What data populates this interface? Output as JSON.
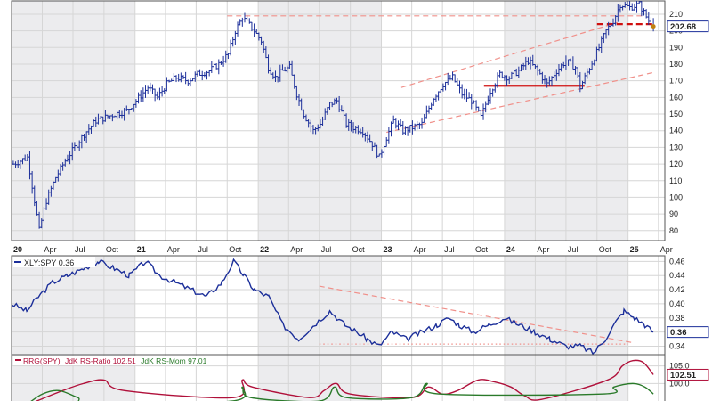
{
  "chart_data": [
    {
      "type": "line",
      "style": "ohlc-bars",
      "series": [
        {
          "name": "",
          "color": "#1c2f9a",
          "points": [
            [
              "2020-01-06",
              120
            ],
            [
              "2020-02-17",
              124
            ],
            [
              "2020-02-24",
              116
            ],
            [
              "2020-03-09",
              98
            ],
            [
              "2020-03-23",
              80
            ],
            [
              "2020-04-13",
              98
            ],
            [
              "2020-05-11",
              112
            ],
            [
              "2020-06-08",
              122
            ],
            [
              "2020-07-06",
              130
            ],
            [
              "2020-08-03",
              138
            ],
            [
              "2020-09-07",
              146
            ],
            [
              "2020-10-05",
              148
            ],
            [
              "2020-11-02",
              150
            ],
            [
              "2020-12-07",
              152
            ],
            [
              "2021-01-04",
              158
            ],
            [
              "2021-02-08",
              166
            ],
            [
              "2021-03-08",
              160
            ],
            [
              "2021-04-05",
              168
            ],
            [
              "2021-05-03",
              172
            ],
            [
              "2021-06-07",
              170
            ],
            [
              "2021-07-05",
              174
            ],
            [
              "2021-08-09",
              176
            ],
            [
              "2021-09-06",
              180
            ],
            [
              "2021-10-04",
              186
            ],
            [
              "2021-10-25",
              200
            ],
            [
              "2021-11-15",
              208
            ],
            [
              "2021-12-13",
              202
            ],
            [
              "2022-01-10",
              194
            ],
            [
              "2022-01-31",
              178
            ],
            [
              "2022-02-21",
              172
            ],
            [
              "2022-03-14",
              176
            ],
            [
              "2022-04-04",
              178
            ],
            [
              "2022-04-25",
              162
            ],
            [
              "2022-05-16",
              150
            ],
            [
              "2022-06-13",
              140
            ],
            [
              "2022-07-04",
              144
            ],
            [
              "2022-08-01",
              156
            ],
            [
              "2022-08-22",
              158
            ],
            [
              "2022-09-19",
              144
            ],
            [
              "2022-10-10",
              142
            ],
            [
              "2022-11-07",
              140
            ],
            [
              "2022-12-05",
              132
            ],
            [
              "2022-12-26",
              124
            ],
            [
              "2023-01-16",
              136
            ],
            [
              "2023-02-06",
              146
            ],
            [
              "2023-03-06",
              140
            ],
            [
              "2023-04-03",
              142
            ],
            [
              "2023-05-01",
              144
            ],
            [
              "2023-06-05",
              160
            ],
            [
              "2023-07-03",
              168
            ],
            [
              "2023-07-31",
              172
            ],
            [
              "2023-08-28",
              162
            ],
            [
              "2023-09-25",
              158
            ],
            [
              "2023-10-23",
              148
            ],
            [
              "2023-11-20",
              164
            ],
            [
              "2023-12-18",
              174
            ],
            [
              "2024-01-15",
              172
            ],
            [
              "2024-02-12",
              176
            ],
            [
              "2024-03-11",
              182
            ],
            [
              "2024-04-08",
              176
            ],
            [
              "2024-05-06",
              168
            ],
            [
              "2024-06-03",
              176
            ],
            [
              "2024-07-01",
              182
            ],
            [
              "2024-07-29",
              178
            ],
            [
              "2024-08-12",
              166
            ],
            [
              "2024-09-09",
              178
            ],
            [
              "2024-10-07",
              190
            ],
            [
              "2024-10-28",
              200
            ],
            [
              "2024-11-18",
              206
            ],
            [
              "2024-12-09",
              216
            ],
            [
              "2025-01-06",
              214
            ],
            [
              "2025-02-03",
              216
            ],
            [
              "2025-03-03",
              206
            ],
            [
              "2025-03-17",
              202.68
            ]
          ]
        }
      ],
      "y_ticks": [
        80,
        90,
        100,
        110,
        120,
        130,
        140,
        150,
        160,
        170,
        180,
        190,
        200,
        210
      ],
      "ylim": [
        74,
        218
      ],
      "xlim": [
        "2020-01-01",
        "2025-04-20"
      ],
      "x_ticks": [
        {
          "date": "2020-01-01",
          "label": "20",
          "bold": true
        },
        {
          "date": "2020-04-01",
          "label": "Apr",
          "bold": false
        },
        {
          "date": "2020-07-01",
          "label": "Jul",
          "bold": false
        },
        {
          "date": "2020-10-01",
          "label": "Oct",
          "bold": false
        },
        {
          "date": "2021-01-01",
          "label": "21",
          "bold": true
        },
        {
          "date": "2021-04-01",
          "label": "Apr",
          "bold": false
        },
        {
          "date": "2021-07-01",
          "label": "Jul",
          "bold": false
        },
        {
          "date": "2021-10-01",
          "label": "Oct",
          "bold": false
        },
        {
          "date": "2022-01-01",
          "label": "22",
          "bold": true
        },
        {
          "date": "2022-04-01",
          "label": "Apr",
          "bold": false
        },
        {
          "date": "2022-07-01",
          "label": "Jul",
          "bold": false
        },
        {
          "date": "2022-10-01",
          "label": "Oct",
          "bold": false
        },
        {
          "date": "2023-01-01",
          "label": "23",
          "bold": true
        },
        {
          "date": "2023-04-01",
          "label": "Apr",
          "bold": false
        },
        {
          "date": "2023-07-01",
          "label": "Jul",
          "bold": false
        },
        {
          "date": "2023-10-01",
          "label": "Oct",
          "bold": false
        },
        {
          "date": "2024-01-01",
          "label": "24",
          "bold": true
        },
        {
          "date": "2024-04-01",
          "label": "Apr",
          "bold": false
        },
        {
          "date": "2024-07-01",
          "label": "Jul",
          "bold": false
        },
        {
          "date": "2024-10-01",
          "label": "Oct",
          "bold": false
        },
        {
          "date": "2025-01-01",
          "label": "25",
          "bold": true
        },
        {
          "date": "2025-04-01",
          "label": "Apr",
          "bold": false
        }
      ],
      "last_value_label": "202.68",
      "grid": true,
      "annotations": [
        {
          "kind": "dashed-line",
          "color": "#f0908a",
          "from": [
            "2021-10-01",
            209
          ],
          "to": [
            "2025-02-20",
            209
          ]
        },
        {
          "kind": "dashed-line",
          "color": "#f0908a",
          "from": [
            "2023-01-16",
            139
          ],
          "to": [
            "2025-03-17",
            175
          ]
        },
        {
          "kind": "dashed-line",
          "color": "#f0908a",
          "from": [
            "2023-03-01",
            166
          ],
          "to": [
            "2024-12-01",
            205
          ]
        },
        {
          "kind": "solid-line",
          "color": "#d01010",
          "from": [
            "2023-11-01",
            167
          ],
          "to": [
            "2024-08-25",
            167
          ]
        },
        {
          "kind": "dashed-heavy",
          "color": "#d01010",
          "from": [
            "2024-10-01",
            204
          ],
          "to": [
            "2025-03-17",
            204
          ]
        }
      ]
    },
    {
      "type": "line",
      "series": [
        {
          "name": "XLY:SPY",
          "color": "#1c2f9a",
          "x": [
            "2020-01-01",
            "2020-02-15",
            "2020-03-20",
            "2020-05-01",
            "2020-06-15",
            "2020-08-01",
            "2020-09-15",
            "2020-11-01",
            "2020-12-15",
            "2021-02-01",
            "2021-03-15",
            "2021-05-01",
            "2021-06-15",
            "2021-08-01",
            "2021-09-15",
            "2021-10-20",
            "2021-11-20",
            "2021-12-20",
            "2022-02-01",
            "2022-03-15",
            "2022-05-01",
            "2022-06-15",
            "2022-08-01",
            "2022-09-15",
            "2022-10-20",
            "2022-11-20",
            "2022-12-25",
            "2023-02-01",
            "2023-03-15",
            "2023-05-01",
            "2023-06-15",
            "2023-07-20",
            "2023-08-20",
            "2023-10-01",
            "2023-11-15",
            "2024-01-01",
            "2024-02-15",
            "2024-04-01",
            "2024-05-15",
            "2024-07-01",
            "2024-08-15",
            "2024-09-20",
            "2024-10-25",
            "2024-11-20",
            "2024-12-20",
            "2025-01-20",
            "2025-02-20",
            "2025-03-17"
          ],
          "values": [
            0.4,
            0.39,
            0.41,
            0.43,
            0.44,
            0.45,
            0.46,
            0.45,
            0.44,
            0.46,
            0.44,
            0.43,
            0.42,
            0.41,
            0.43,
            0.46,
            0.44,
            0.42,
            0.41,
            0.37,
            0.35,
            0.37,
            0.39,
            0.37,
            0.36,
            0.35,
            0.34,
            0.36,
            0.35,
            0.36,
            0.37,
            0.38,
            0.37,
            0.36,
            0.37,
            0.38,
            0.37,
            0.36,
            0.35,
            0.34,
            0.34,
            0.33,
            0.35,
            0.37,
            0.39,
            0.38,
            0.37,
            0.36
          ]
        }
      ],
      "y_ticks": [
        0.34,
        0.36,
        0.38,
        0.4,
        0.42,
        0.44,
        0.46
      ],
      "y_tick_labels": [
        "0.34",
        "0.36",
        "0.38",
        "0.40",
        "0.42",
        "0.44",
        "0.46"
      ],
      "ylim": [
        0.328,
        0.468
      ],
      "last_value_label": "0.36",
      "legend": "XLY:SPY 0.36",
      "annotations": [
        {
          "kind": "dashed-line",
          "color": "#f0908a",
          "from": [
            "2022-07-01",
            0.425
          ],
          "to": [
            "2025-01-15",
            0.345
          ]
        },
        {
          "kind": "dotted-line",
          "color": "#f0908a",
          "from": [
            "2022-07-01",
            0.343
          ],
          "to": [
            "2025-01-01",
            0.343
          ]
        }
      ]
    },
    {
      "type": "line",
      "legend_items": [
        "RRG(SPY)",
        "JdK RS-Ratio 102.51",
        "JdK RS-Mom 97.01"
      ],
      "y_ticks": [
        105,
        100
      ],
      "y_tick_labels": [
        "105.0",
        "100.0"
      ],
      "ylim": [
        93,
        108.2
      ],
      "last_value_label": "102.51",
      "series": [
        {
          "name": "JdK RS-Ratio",
          "color": "#b0103a",
          "x": [
            "2020-03-15",
            "2020-06-01",
            "2020-08-01",
            "2020-10-01",
            "2020-12-01",
            "2021-10-20",
            "2021-11-15",
            "2021-12-15",
            "2022-06-01",
            "2022-07-15",
            "2022-08-20",
            "2022-10-01",
            "2023-04-01",
            "2023-05-20",
            "2023-07-01",
            "2023-08-15",
            "2023-10-15",
            "2023-12-01",
            "2024-01-20",
            "2024-03-01",
            "2024-04-20",
            "2024-11-01",
            "2024-12-15",
            "2025-01-15",
            "2025-02-15",
            "2025-03-17"
          ],
          "values": [
            95,
            98,
            100,
            101,
            98,
            96,
            101,
            99,
            96,
            98,
            100,
            97,
            96,
            99,
            97,
            98,
            101,
            100.5,
            99,
            96.5,
            95.5,
            101,
            105,
            106.5,
            106,
            102.51
          ]
        },
        {
          "name": "JdK RS-Mom",
          "color": "#2a7a2a",
          "x": [
            "2020-02-15",
            "2020-04-01",
            "2020-05-20",
            "2020-07-15",
            "2020-09-01",
            "2021-10-15",
            "2021-11-15",
            "2021-12-10",
            "2022-07-01",
            "2022-08-15",
            "2022-09-20",
            "2023-04-01",
            "2023-05-15",
            "2023-06-25",
            "2024-10-15",
            "2024-11-20",
            "2025-01-15",
            "2025-02-20",
            "2025-03-17"
          ],
          "values": [
            94,
            97,
            98,
            96,
            94,
            95,
            99,
            96,
            95,
            99,
            96,
            96,
            100,
            97,
            97,
            99,
            100,
            99,
            97.01
          ]
        }
      ]
    }
  ]
}
